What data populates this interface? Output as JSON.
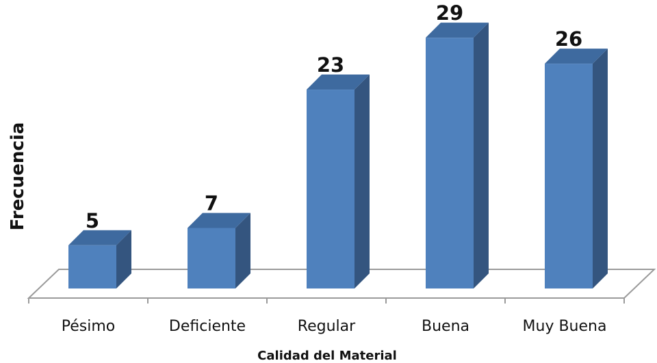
{
  "chart_data": {
    "type": "bar",
    "categories": [
      "Pésimo",
      "Deficiente",
      "Regular",
      "Buena",
      "Muy Buena"
    ],
    "values": [
      5,
      7,
      23,
      29,
      26
    ],
    "xlabel": "Calidad del Material",
    "ylabel": "Frecuencia",
    "grid": false,
    "legend": "none",
    "three_d": true,
    "colors": {
      "bar_front": "#4F81BD",
      "bar_side": "#34557F",
      "bar_top": "#3E6A9F",
      "axis": "#9A9A9A"
    }
  }
}
